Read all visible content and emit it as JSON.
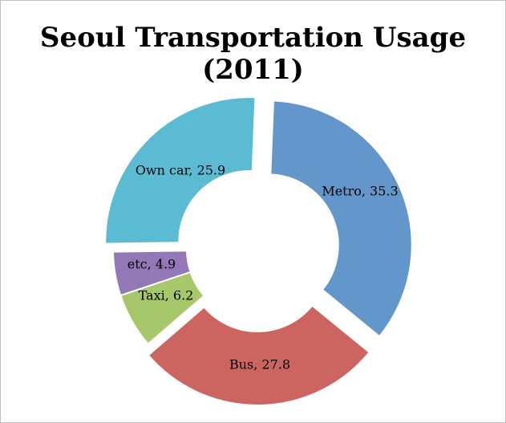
{
  "chart_data": {
    "type": "pie",
    "title": "Seoul Transportation Usage (2011)",
    "legend": "none",
    "slices": [
      {
        "name": "Metro",
        "value": 35.3,
        "label": "Metro, 35.3",
        "color": "#6397cc",
        "exploded": true
      },
      {
        "name": "Bus",
        "value": 27.8,
        "label": "Bus, 27.8",
        "color": "#cc6560",
        "exploded": true
      },
      {
        "name": "Taxi",
        "value": 6.2,
        "label": "Taxi, 6.2",
        "color": "#a7c76b",
        "exploded": false
      },
      {
        "name": "etc",
        "value": 4.9,
        "label": "etc, 4.9",
        "color": "#9278b6",
        "exploded": false
      },
      {
        "name": "Own car",
        "value": 25.9,
        "label": "Own car, 25.9",
        "color": "#5bbbd2",
        "exploded": true
      }
    ]
  }
}
